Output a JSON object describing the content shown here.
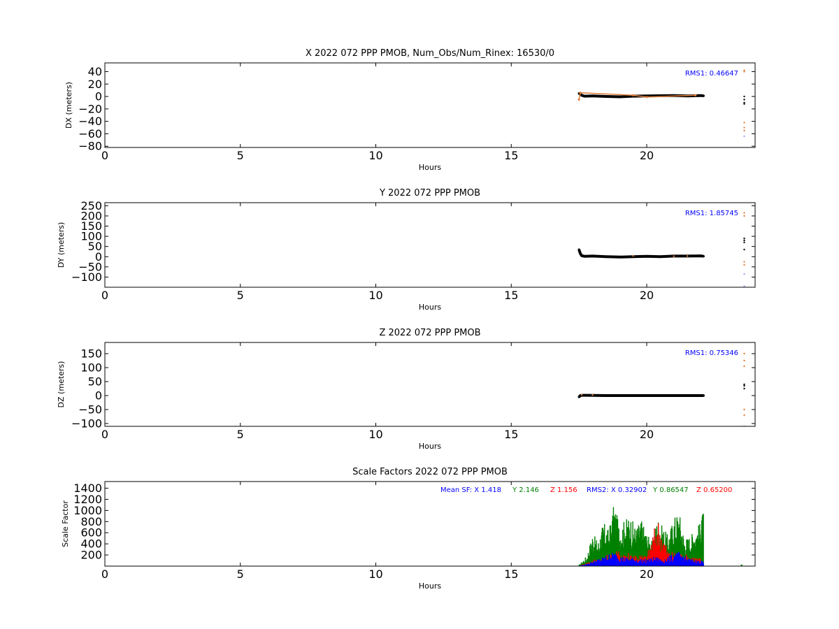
{
  "colors": {
    "black": "#000000",
    "orange": "#e08040",
    "red": "#ff0000",
    "green": "#008000",
    "blue": "#0000ff"
  },
  "chart_data": [
    {
      "type": "scatter",
      "title": "X 2022 072 PPP  PMOB, Num_Obs/Num_Rinex: 16530/0",
      "xlabel": "Hours",
      "ylabel": "DX (meters)",
      "xlim": [
        0,
        24
      ],
      "ylim": [
        -82,
        54
      ],
      "xticks": [
        0,
        5,
        10,
        15,
        20
      ],
      "yticks": [
        40,
        20,
        0,
        -20,
        -40,
        -60,
        -80
      ],
      "annotations": [
        {
          "text": "RMS1:  0.46647",
          "color": "#0000ff",
          "position": "top-right"
        }
      ],
      "series": [
        {
          "color": "#000000",
          "x": [
            17.5,
            17.6,
            17.7,
            18.0,
            18.5,
            19.0,
            19.5,
            20.0,
            20.5,
            21.0,
            21.5,
            22.0,
            22.1
          ],
          "y": [
            5.0,
            2.0,
            0.5,
            1.0,
            0.0,
            -0.5,
            0.5,
            0.8,
            1.2,
            1.5,
            1.0,
            1.5,
            1.0
          ]
        },
        {
          "color": "#e08040",
          "x": [
            17.5,
            17.55,
            19.5,
            20.0,
            21.8
          ],
          "y": [
            -5.0,
            6.0,
            2.0,
            -1.0,
            2.0
          ]
        },
        {
          "color": "#000000",
          "x": [
            23.6,
            23.6,
            23.6,
            23.6
          ],
          "y": [
            0,
            -5,
            -10,
            -12
          ]
        },
        {
          "color": "#e08040",
          "x": [
            23.6,
            23.6,
            23.6,
            23.6,
            23.6
          ],
          "y": [
            42,
            40,
            -42,
            -50,
            -55
          ]
        },
        {
          "color": "#a0a0ff",
          "x": [
            23.6
          ],
          "y": [
            -64
          ]
        }
      ]
    },
    {
      "type": "scatter",
      "title": "Y 2022 072 PPP  PMOB",
      "xlabel": "Hours",
      "ylabel": "DY (meters)",
      "xlim": [
        0,
        24
      ],
      "ylim": [
        -150,
        265
      ],
      "xticks": [
        0,
        5,
        10,
        15,
        20
      ],
      "yticks": [
        250,
        200,
        150,
        100,
        50,
        0,
        -50,
        -100
      ],
      "annotations": [
        {
          "text": "RMS1:  1.85745",
          "color": "#0000ff",
          "position": "top-right"
        }
      ],
      "series": [
        {
          "color": "#000000",
          "x": [
            17.5,
            17.55,
            17.6,
            17.7,
            18.0,
            18.5,
            19.0,
            19.5,
            20.0,
            20.5,
            21.0,
            21.5,
            22.0,
            22.1
          ],
          "y": [
            35,
            15,
            5,
            2,
            3,
            0,
            -2,
            0,
            2,
            0,
            3,
            3,
            4,
            2
          ]
        },
        {
          "color": "#e08040",
          "x": [
            19.5,
            21.0,
            21.5
          ],
          "y": [
            4,
            2,
            3
          ]
        },
        {
          "color": "#000000",
          "x": [
            23.6,
            23.6,
            23.6,
            23.6
          ],
          "y": [
            90,
            80,
            70,
            35
          ]
        },
        {
          "color": "#e08040",
          "x": [
            23.6,
            23.6,
            23.6,
            23.6
          ],
          "y": [
            215,
            200,
            -25,
            -40
          ]
        },
        {
          "color": "#a0a0ff",
          "x": [
            23.6,
            23.6
          ],
          "y": [
            -85,
            -145
          ]
        }
      ]
    },
    {
      "type": "scatter",
      "title": "Z 2022 072 PPP  PMOB",
      "xlabel": "Hours",
      "ylabel": "DZ (meters)",
      "xlim": [
        0,
        24
      ],
      "ylim": [
        -110,
        190
      ],
      "xticks": [
        0,
        5,
        10,
        15,
        20
      ],
      "yticks": [
        150,
        100,
        50,
        0,
        -50,
        -100
      ],
      "annotations": [
        {
          "text": "RMS1:  0.75346",
          "color": "#0000ff",
          "position": "top-right"
        }
      ],
      "series": [
        {
          "color": "#000000",
          "x": [
            17.5,
            17.55,
            17.6,
            17.8,
            18.0,
            18.5,
            19.0,
            19.5,
            20.0,
            20.5,
            21.0,
            21.5,
            22.0,
            22.1
          ],
          "y": [
            -5,
            0,
            1,
            1,
            0.5,
            0,
            0,
            0,
            0,
            0,
            0,
            0,
            0,
            0
          ]
        },
        {
          "color": "#e08040",
          "x": [
            17.6,
            18.0
          ],
          "y": [
            3,
            2
          ]
        },
        {
          "color": "#000000",
          "x": [
            23.6,
            23.6,
            23.6
          ],
          "y": [
            40,
            35,
            25
          ]
        },
        {
          "color": "#e08040",
          "x": [
            23.6,
            23.6,
            23.6,
            23.6,
            23.6
          ],
          "y": [
            150,
            125,
            105,
            -50,
            -70
          ]
        },
        {
          "color": "#a0a0ff",
          "x": [
            23.6
          ],
          "y": [
            -110
          ]
        }
      ]
    },
    {
      "type": "scatter",
      "title": "Scale Factors 2022 072 PPP  PMOB",
      "xlabel": "Hours",
      "ylabel": "Scale Factor",
      "xlim": [
        0,
        24
      ],
      "ylim": [
        0,
        1520
      ],
      "xticks": [
        0,
        5,
        10,
        15,
        20
      ],
      "yticks": [
        1400,
        1200,
        1000,
        800,
        600,
        400,
        200
      ],
      "annotations": [
        {
          "text": "Mean SF: X   1.418",
          "color": "#0000ff"
        },
        {
          "text": "Y   2.146",
          "color": "#008000"
        },
        {
          "text": "Z   1.156",
          "color": "#ff0000"
        },
        {
          "text": "RMS2: X  0.32902",
          "color": "#0000ff"
        },
        {
          "text": "Y  0.86547",
          "color": "#008000"
        },
        {
          "text": "Z  0.65200",
          "color": "#ff0000"
        }
      ],
      "series": [
        {
          "color": "#008000",
          "x": [
            17.5,
            17.8,
            18.0,
            18.2,
            18.4,
            18.6,
            18.8,
            19.0,
            19.2,
            19.4,
            19.6,
            19.8,
            20.0,
            20.2,
            20.4,
            20.6,
            20.8,
            21.0,
            21.2,
            21.4,
            21.6,
            21.8,
            22.0,
            22.1
          ],
          "y": [
            20,
            200,
            600,
            450,
            800,
            650,
            1150,
            700,
            850,
            900,
            700,
            850,
            600,
            450,
            900,
            700,
            550,
            900,
            1000,
            500,
            550,
            700,
            800,
            1050
          ]
        },
        {
          "color": "#ff0000",
          "x": [
            17.6,
            18.0,
            18.5,
            19.0,
            19.5,
            20.0,
            20.4,
            20.8,
            21.2,
            21.6,
            22.0
          ],
          "y": [
            30,
            120,
            200,
            300,
            250,
            200,
            900,
            280,
            250,
            200,
            150
          ]
        },
        {
          "color": "#0000ff",
          "x": [
            17.5,
            17.8,
            18.0,
            18.3,
            18.6,
            18.8,
            19.0,
            19.3,
            19.6,
            20.0,
            20.3,
            20.6,
            21.0,
            21.2,
            21.5,
            21.8,
            22.0,
            22.1
          ],
          "y": [
            10,
            40,
            90,
            150,
            220,
            260,
            180,
            160,
            150,
            130,
            170,
            140,
            220,
            260,
            150,
            110,
            100,
            80
          ]
        },
        {
          "color": "#008000",
          "x": [
            23.5
          ],
          "y": [
            15
          ]
        }
      ]
    }
  ]
}
